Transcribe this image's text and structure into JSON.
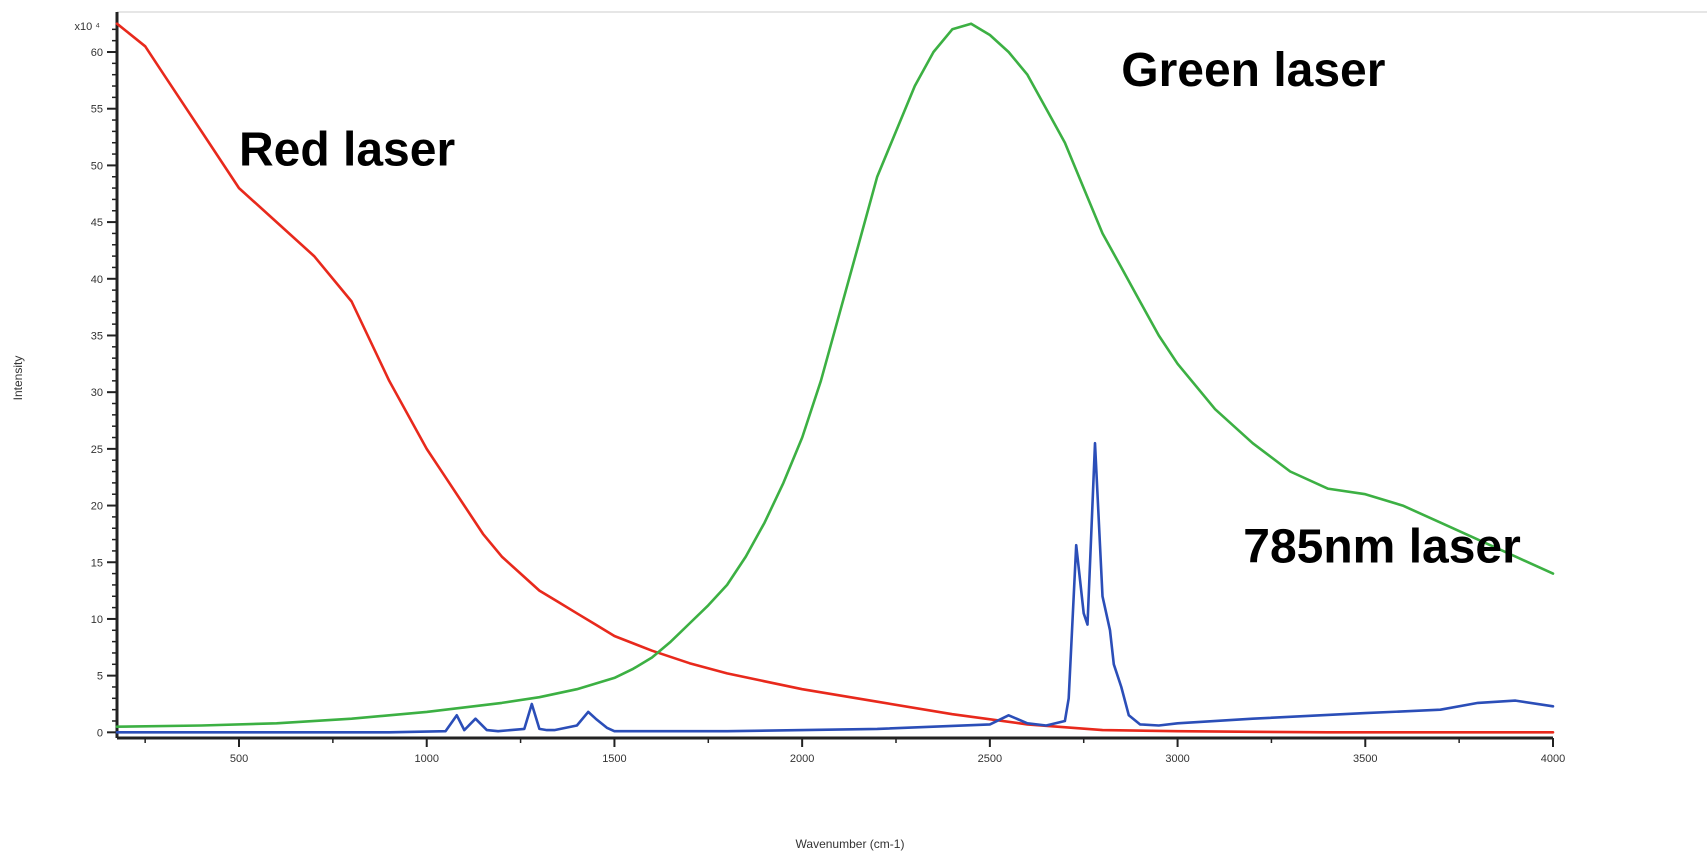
{
  "chart_data": {
    "type": "line",
    "title": "",
    "xlabel": "Wavenumber (cm-1)",
    "ylabel": "Intensity",
    "y_multiplier_label": "x10 ⁴",
    "xlim": [
      175,
      4000
    ],
    "ylim": [
      -0.5,
      63
    ],
    "grid": false,
    "x_ticks": [
      500,
      1000,
      1500,
      2000,
      2500,
      3000,
      3500,
      4000
    ],
    "x_tick_labels": [
      "500",
      "1000",
      "1500",
      "2000",
      "2500",
      "3000",
      "3500",
      "4000"
    ],
    "y_ticks": [
      0,
      5,
      10,
      15,
      20,
      25,
      30,
      35,
      40,
      45,
      50,
      55,
      60
    ],
    "y_tick_labels": [
      "0",
      "5",
      "10",
      "15",
      "20",
      "25",
      "30",
      "35",
      "40",
      "45",
      "50",
      "55",
      "60"
    ],
    "annotations": [
      {
        "text": "Red laser",
        "x": 500,
        "y": 50
      },
      {
        "text": "Green laser",
        "x": 2850,
        "y": 57
      },
      {
        "text": "785nm laser",
        "x": 3175,
        "y": 15
      }
    ],
    "series": [
      {
        "color": "#e8291c",
        "x": [
          175,
          250,
          300,
          400,
          500,
          600,
          700,
          800,
          900,
          1000,
          1050,
          1100,
          1150,
          1200,
          1250,
          1300,
          1350,
          1400,
          1450,
          1500,
          1600,
          1700,
          1800,
          1900,
          2000,
          2200,
          2400,
          2600,
          2800,
          3000,
          3200,
          3400,
          3600,
          3800,
          4000
        ],
        "y": [
          62.5,
          60.5,
          58,
          53,
          48,
          45,
          42,
          38,
          31,
          25,
          22.5,
          20,
          17.5,
          15.5,
          14,
          12.5,
          11.5,
          10.5,
          9.5,
          8.5,
          7.2,
          6.1,
          5.2,
          4.5,
          3.8,
          2.7,
          1.6,
          0.7,
          0.2,
          0.1,
          0.05,
          0.0,
          0.0,
          0.0,
          0.0
        ]
      },
      {
        "color": "#3cb043",
        "x": [
          175,
          400,
          600,
          800,
          900,
          1000,
          1100,
          1200,
          1300,
          1400,
          1500,
          1550,
          1600,
          1650,
          1700,
          1750,
          1800,
          1850,
          1900,
          1950,
          2000,
          2050,
          2100,
          2150,
          2200,
          2300,
          2350,
          2400,
          2450,
          2500,
          2550,
          2600,
          2650,
          2700,
          2750,
          2800,
          2850,
          2900,
          2950,
          3000,
          3100,
          3200,
          3300,
          3400,
          3500,
          3600,
          3700,
          3800,
          3900,
          4000
        ],
        "y": [
          0.5,
          0.6,
          0.8,
          1.2,
          1.5,
          1.8,
          2.2,
          2.6,
          3.1,
          3.8,
          4.8,
          5.6,
          6.6,
          8,
          9.6,
          11.2,
          13,
          15.5,
          18.5,
          22,
          26,
          31,
          37,
          43,
          49,
          57,
          60,
          62,
          62.5,
          61.5,
          60,
          58,
          55,
          52,
          48,
          44,
          41,
          38,
          35,
          32.5,
          28.5,
          25.5,
          23,
          21.5,
          21,
          20,
          18.5,
          17,
          15.5,
          14
        ]
      },
      {
        "color": "#2b4eb8",
        "x": [
          175,
          500,
          900,
          1050,
          1080,
          1100,
          1130,
          1160,
          1190,
          1260,
          1280,
          1300,
          1320,
          1340,
          1400,
          1430,
          1450,
          1480,
          1500,
          1800,
          2200,
          2500,
          2550,
          2600,
          2650,
          2700,
          2710,
          2730,
          2750,
          2760,
          2780,
          2800,
          2820,
          2830,
          2850,
          2870,
          2900,
          2950,
          3000,
          3200,
          3500,
          3700,
          3800,
          3900,
          4000
        ],
        "y": [
          0,
          0,
          0,
          0.1,
          1.5,
          0.2,
          1.2,
          0.2,
          0.1,
          0.3,
          2.5,
          0.3,
          0.2,
          0.2,
          0.6,
          1.8,
          1.2,
          0.4,
          0.1,
          0.1,
          0.3,
          0.7,
          1.5,
          0.8,
          0.6,
          1.0,
          3.0,
          16.5,
          10.5,
          9.5,
          25.5,
          12,
          9,
          6,
          4,
          1.5,
          0.7,
          0.6,
          0.8,
          1.2,
          1.7,
          2.0,
          2.6,
          2.8,
          2.3
        ]
      }
    ]
  }
}
